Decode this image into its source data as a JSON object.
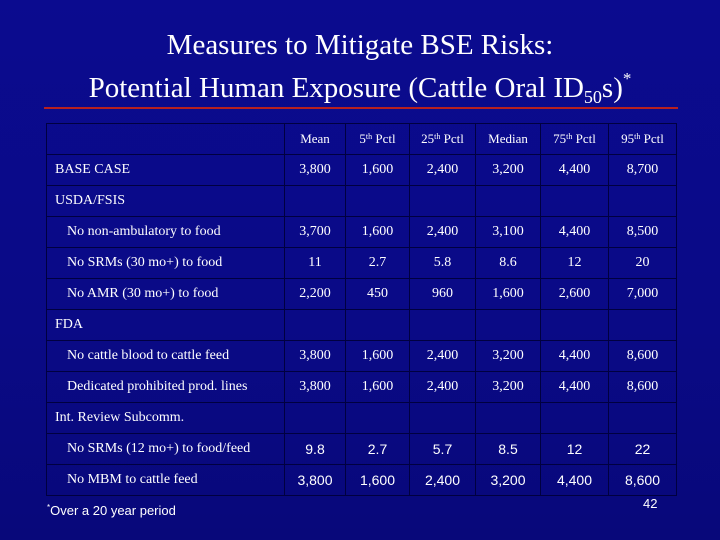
{
  "title": {
    "line1": "Measures to Mitigate BSE Risks:",
    "line2_prefix": "Potential Human Exposure (Cattle Oral ID",
    "line2_sub": "50",
    "line2_suffix": "s)",
    "line2_sup": "*"
  },
  "table": {
    "headers": [
      {
        "base": "Mean",
        "sup": "",
        "rest": ""
      },
      {
        "base": "5",
        "sup": "th",
        "rest": " Pctl"
      },
      {
        "base": "25",
        "sup": "th",
        "rest": " Pctl"
      },
      {
        "base": "Median",
        "sup": "",
        "rest": ""
      },
      {
        "base": "75",
        "sup": "th",
        "rest": " Pctl"
      },
      {
        "base": "95",
        "sup": "th",
        "rest": " Pctl"
      }
    ],
    "rows": [
      {
        "kind": "data",
        "label": "BASE CASE",
        "values": [
          "3,800",
          "1,600",
          "2,400",
          "3,200",
          "4,400",
          "8,700"
        ]
      },
      {
        "kind": "section",
        "label": "USDA/FSIS"
      },
      {
        "kind": "data",
        "indent": true,
        "label": "No non-ambulatory to food",
        "values": [
          "3,700",
          "1,600",
          "2,400",
          "3,100",
          "4,400",
          "8,500"
        ]
      },
      {
        "kind": "data",
        "indent": true,
        "label": "No SRMs (30 mo+) to food",
        "values": [
          "11",
          "2.7",
          "5.8",
          "8.6",
          "12",
          "20"
        ]
      },
      {
        "kind": "data",
        "indent": true,
        "label": "No AMR (30 mo+) to food",
        "values": [
          "2,200",
          "450",
          "960",
          "1,600",
          "2,600",
          "7,000"
        ]
      },
      {
        "kind": "section",
        "label": "FDA"
      },
      {
        "kind": "data",
        "indent": true,
        "label": "No cattle blood to cattle feed",
        "values": [
          "3,800",
          "1,600",
          "2,400",
          "3,200",
          "4,400",
          "8,600"
        ]
      },
      {
        "kind": "data",
        "indent": true,
        "label": "Dedicated prohibited prod. lines",
        "values": [
          "3,800",
          "1,600",
          "2,400",
          "3,200",
          "4,400",
          "8,600"
        ]
      },
      {
        "kind": "section",
        "label": "Int. Review Subcomm."
      },
      {
        "kind": "data",
        "indent": true,
        "sans": true,
        "label": "No SRMs (12 mo+) to food/feed",
        "values": [
          "9.8",
          "2.7",
          "5.7",
          "8.5",
          "12",
          "22"
        ]
      },
      {
        "kind": "data",
        "indent": true,
        "sans": true,
        "label": "No MBM to cattle feed",
        "values": [
          "3,800",
          "1,600",
          "2,400",
          "3,200",
          "4,400",
          "8,600"
        ]
      }
    ]
  },
  "footnote": {
    "mark": "*",
    "text": "Over a 20 year period"
  },
  "page_number": "42",
  "colors": {
    "background": "#0a0a86",
    "rule": "#b82020",
    "text": "#ffffff"
  }
}
